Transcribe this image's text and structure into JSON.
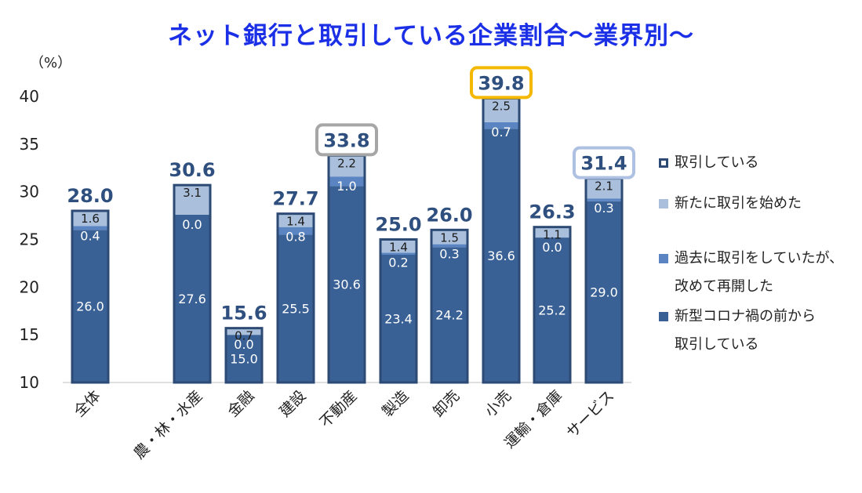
{
  "chart_data": {
    "type": "bar",
    "title": "ネット銀行と取引している企業割合～業界別～",
    "unit_label": "（%）",
    "ylim": [
      10,
      40
    ],
    "yticks": [
      10,
      15,
      20,
      25,
      30,
      35,
      40
    ],
    "categories": [
      "全体",
      "農・林・水産",
      "金融",
      "建設",
      "不動産",
      "製造",
      "卸売",
      "小売",
      "運輸・倉庫",
      "サービス"
    ],
    "totals": [
      "28.0",
      "30.6",
      "15.6",
      "27.7",
      "33.8",
      "25.0",
      "26.0",
      "39.8",
      "26.3",
      "31.4"
    ],
    "highlighted_totals": {
      "4": "#a6a6a6",
      "7": "#f5b800",
      "9": "#aec1e2"
    },
    "series": [
      {
        "name": "新型コロナ禍の前から\n取引している",
        "color": "#3a6196",
        "values": [
          26.0,
          27.6,
          15.0,
          25.5,
          30.6,
          23.4,
          24.2,
          36.6,
          25.2,
          29.0
        ],
        "labels": [
          "26.0",
          "27.6",
          "15.0",
          "25.5",
          "30.6",
          "23.4",
          "24.2",
          "36.6",
          "25.2",
          "29.0"
        ]
      },
      {
        "name": "過去に取引をしていたが、\n改めて再開した",
        "color": "#5a85c2",
        "values": [
          0.4,
          0.0,
          0.0,
          0.8,
          1.0,
          0.2,
          0.3,
          0.7,
          0.0,
          0.3
        ],
        "labels": [
          "0.4",
          "0.0",
          "0.0",
          "0.8",
          "1.0",
          "0.2",
          "0.3",
          "0.7",
          "0.0",
          "0.3"
        ]
      },
      {
        "name": "新たに取引を始めた",
        "color": "#a9bfdc",
        "values": [
          1.6,
          3.1,
          0.7,
          1.4,
          2.2,
          1.4,
          1.5,
          2.5,
          1.1,
          2.1
        ],
        "labels": [
          "1.6",
          "3.1",
          "0.7",
          "1.4",
          "2.2",
          "1.4",
          "1.5",
          "2.5",
          "1.1",
          "2.1"
        ]
      }
    ],
    "outline_series": {
      "name": "取引している",
      "color": "#2c4a73"
    },
    "legend_position": "right",
    "grid": false
  }
}
